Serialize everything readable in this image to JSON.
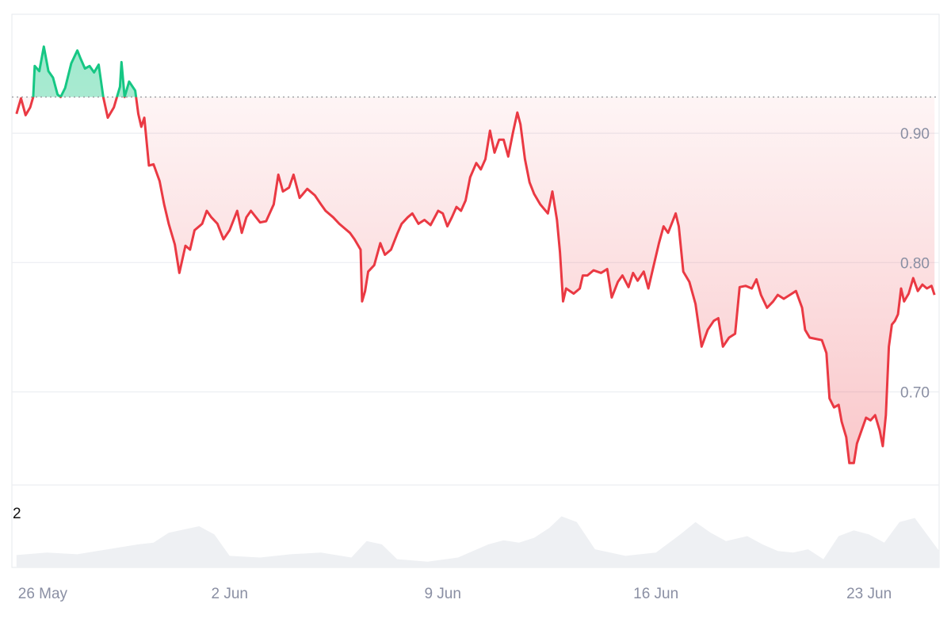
{
  "chart_data": {
    "type": "area",
    "baseline": 0.928,
    "ylim": [
      0.628,
      0.992
    ],
    "yticks": [
      {
        "value": 0.9,
        "label": "0.90"
      },
      {
        "value": 0.8,
        "label": "0.80"
      },
      {
        "value": 0.7,
        "label": "0.70"
      }
    ],
    "xlim_days": [
      -0.15,
      30.3
    ],
    "xticks": [
      {
        "day": 0,
        "label": "26 May"
      },
      {
        "day": 7,
        "label": "2 Jun"
      },
      {
        "day": 14,
        "label": "9 Jun"
      },
      {
        "day": 21,
        "label": "16 Jun"
      },
      {
        "day": 28,
        "label": "23 Jun"
      }
    ],
    "colors": {
      "up": "#16c784",
      "down": "#ea3943",
      "grid": "#eceef2",
      "volume": "#eef0f3",
      "axis_text": "#8a8fa3",
      "baseline": "#9a9aa0"
    },
    "price": [
      [
        0.0,
        0.915
      ],
      [
        0.15,
        0.927
      ],
      [
        0.3,
        0.914
      ],
      [
        0.45,
        0.92
      ],
      [
        0.55,
        0.928
      ],
      [
        0.6,
        0.952
      ],
      [
        0.75,
        0.948
      ],
      [
        0.9,
        0.967
      ],
      [
        1.05,
        0.948
      ],
      [
        1.2,
        0.943
      ],
      [
        1.35,
        0.93
      ],
      [
        1.45,
        0.928
      ],
      [
        1.6,
        0.935
      ],
      [
        1.8,
        0.954
      ],
      [
        2.0,
        0.964
      ],
      [
        2.1,
        0.958
      ],
      [
        2.25,
        0.95
      ],
      [
        2.4,
        0.952
      ],
      [
        2.55,
        0.947
      ],
      [
        2.7,
        0.953
      ],
      [
        2.85,
        0.928
      ],
      [
        3.0,
        0.912
      ],
      [
        3.2,
        0.92
      ],
      [
        3.4,
        0.936
      ],
      [
        3.45,
        0.955
      ],
      [
        3.55,
        0.928
      ],
      [
        3.7,
        0.94
      ],
      [
        3.9,
        0.933
      ],
      [
        4.0,
        0.915
      ],
      [
        4.1,
        0.905
      ],
      [
        4.2,
        0.912
      ],
      [
        4.35,
        0.875
      ],
      [
        4.5,
        0.876
      ],
      [
        4.7,
        0.863
      ],
      [
        4.85,
        0.845
      ],
      [
        5.0,
        0.83
      ],
      [
        5.2,
        0.814
      ],
      [
        5.35,
        0.792
      ],
      [
        5.55,
        0.813
      ],
      [
        5.7,
        0.81
      ],
      [
        5.85,
        0.825
      ],
      [
        6.1,
        0.83
      ],
      [
        6.25,
        0.84
      ],
      [
        6.4,
        0.835
      ],
      [
        6.6,
        0.83
      ],
      [
        6.8,
        0.818
      ],
      [
        7.0,
        0.825
      ],
      [
        7.25,
        0.84
      ],
      [
        7.4,
        0.823
      ],
      [
        7.55,
        0.835
      ],
      [
        7.7,
        0.84
      ],
      [
        8.0,
        0.831
      ],
      [
        8.2,
        0.832
      ],
      [
        8.45,
        0.845
      ],
      [
        8.6,
        0.868
      ],
      [
        8.75,
        0.855
      ],
      [
        8.95,
        0.858
      ],
      [
        9.1,
        0.868
      ],
      [
        9.3,
        0.85
      ],
      [
        9.55,
        0.857
      ],
      [
        9.8,
        0.852
      ],
      [
        10.0,
        0.845
      ],
      [
        10.15,
        0.84
      ],
      [
        10.4,
        0.835
      ],
      [
        10.6,
        0.83
      ],
      [
        10.8,
        0.826
      ],
      [
        10.95,
        0.823
      ],
      [
        11.1,
        0.818
      ],
      [
        11.3,
        0.81
      ],
      [
        11.35,
        0.77
      ],
      [
        11.45,
        0.778
      ],
      [
        11.55,
        0.793
      ],
      [
        11.75,
        0.798
      ],
      [
        11.95,
        0.815
      ],
      [
        12.1,
        0.806
      ],
      [
        12.3,
        0.81
      ],
      [
        12.5,
        0.822
      ],
      [
        12.65,
        0.83
      ],
      [
        12.85,
        0.835
      ],
      [
        13.0,
        0.838
      ],
      [
        13.2,
        0.83
      ],
      [
        13.4,
        0.833
      ],
      [
        13.6,
        0.829
      ],
      [
        13.85,
        0.84
      ],
      [
        14.0,
        0.838
      ],
      [
        14.15,
        0.828
      ],
      [
        14.3,
        0.835
      ],
      [
        14.45,
        0.843
      ],
      [
        14.6,
        0.84
      ],
      [
        14.75,
        0.848
      ],
      [
        14.9,
        0.866
      ],
      [
        15.1,
        0.877
      ],
      [
        15.25,
        0.872
      ],
      [
        15.4,
        0.88
      ],
      [
        15.55,
        0.902
      ],
      [
        15.7,
        0.885
      ],
      [
        15.85,
        0.895
      ],
      [
        16.0,
        0.895
      ],
      [
        16.15,
        0.882
      ],
      [
        16.3,
        0.9
      ],
      [
        16.45,
        0.916
      ],
      [
        16.55,
        0.907
      ],
      [
        16.7,
        0.88
      ],
      [
        16.85,
        0.862
      ],
      [
        17.0,
        0.853
      ],
      [
        17.2,
        0.845
      ],
      [
        17.45,
        0.838
      ],
      [
        17.6,
        0.855
      ],
      [
        17.75,
        0.833
      ],
      [
        17.85,
        0.808
      ],
      [
        17.95,
        0.77
      ],
      [
        18.05,
        0.78
      ],
      [
        18.3,
        0.776
      ],
      [
        18.5,
        0.78
      ],
      [
        18.6,
        0.79
      ],
      [
        18.75,
        0.79
      ],
      [
        18.95,
        0.794
      ],
      [
        19.2,
        0.792
      ],
      [
        19.4,
        0.795
      ],
      [
        19.55,
        0.773
      ],
      [
        19.75,
        0.785
      ],
      [
        19.9,
        0.79
      ],
      [
        20.1,
        0.781
      ],
      [
        20.25,
        0.792
      ],
      [
        20.4,
        0.786
      ],
      [
        20.6,
        0.793
      ],
      [
        20.75,
        0.78
      ],
      [
        20.9,
        0.795
      ],
      [
        21.1,
        0.815
      ],
      [
        21.25,
        0.828
      ],
      [
        21.4,
        0.823
      ],
      [
        21.55,
        0.832
      ],
      [
        21.65,
        0.838
      ],
      [
        21.75,
        0.828
      ],
      [
        21.9,
        0.793
      ],
      [
        22.1,
        0.785
      ],
      [
        22.3,
        0.768
      ],
      [
        22.5,
        0.735
      ],
      [
        22.7,
        0.748
      ],
      [
        22.9,
        0.755
      ],
      [
        23.05,
        0.757
      ],
      [
        23.2,
        0.735
      ],
      [
        23.4,
        0.742
      ],
      [
        23.6,
        0.745
      ],
      [
        23.75,
        0.781
      ],
      [
        23.95,
        0.782
      ],
      [
        24.15,
        0.78
      ],
      [
        24.3,
        0.787
      ],
      [
        24.45,
        0.775
      ],
      [
        24.65,
        0.765
      ],
      [
        24.85,
        0.77
      ],
      [
        25.0,
        0.775
      ],
      [
        25.2,
        0.772
      ],
      [
        25.4,
        0.775
      ],
      [
        25.6,
        0.778
      ],
      [
        25.8,
        0.765
      ],
      [
        25.9,
        0.748
      ],
      [
        26.05,
        0.742
      ],
      [
        26.25,
        0.741
      ],
      [
        26.45,
        0.74
      ],
      [
        26.6,
        0.73
      ],
      [
        26.7,
        0.695
      ],
      [
        26.85,
        0.688
      ],
      [
        27.0,
        0.69
      ],
      [
        27.1,
        0.677
      ],
      [
        27.25,
        0.665
      ],
      [
        27.35,
        0.645
      ],
      [
        27.5,
        0.645
      ],
      [
        27.6,
        0.66
      ],
      [
        27.75,
        0.67
      ],
      [
        27.9,
        0.68
      ],
      [
        28.05,
        0.678
      ],
      [
        28.2,
        0.682
      ],
      [
        28.35,
        0.67
      ],
      [
        28.45,
        0.658
      ],
      [
        28.55,
        0.682
      ],
      [
        28.65,
        0.735
      ],
      [
        28.75,
        0.752
      ],
      [
        28.85,
        0.755
      ],
      [
        28.95,
        0.76
      ],
      [
        29.05,
        0.78
      ],
      [
        29.15,
        0.77
      ],
      [
        29.3,
        0.776
      ],
      [
        29.45,
        0.788
      ],
      [
        29.6,
        0.778
      ],
      [
        29.75,
        0.783
      ],
      [
        29.9,
        0.78
      ],
      [
        30.05,
        0.782
      ],
      [
        30.15,
        0.775
      ]
    ],
    "volume_label": "2",
    "volume": [
      [
        0.0,
        0.15
      ],
      [
        1.0,
        0.18
      ],
      [
        2.0,
        0.16
      ],
      [
        3.0,
        0.22
      ],
      [
        4.0,
        0.28
      ],
      [
        4.5,
        0.3
      ],
      [
        5.0,
        0.42
      ],
      [
        6.0,
        0.5
      ],
      [
        6.5,
        0.4
      ],
      [
        7.0,
        0.14
      ],
      [
        8.0,
        0.12
      ],
      [
        9.0,
        0.16
      ],
      [
        10.0,
        0.18
      ],
      [
        11.0,
        0.12
      ],
      [
        11.5,
        0.32
      ],
      [
        12.0,
        0.28
      ],
      [
        12.5,
        0.1
      ],
      [
        13.5,
        0.07
      ],
      [
        14.5,
        0.12
      ],
      [
        15.5,
        0.28
      ],
      [
        16.0,
        0.33
      ],
      [
        16.5,
        0.3
      ],
      [
        17.0,
        0.36
      ],
      [
        17.5,
        0.48
      ],
      [
        17.9,
        0.62
      ],
      [
        18.4,
        0.55
      ],
      [
        19.0,
        0.22
      ],
      [
        20.0,
        0.14
      ],
      [
        21.0,
        0.18
      ],
      [
        21.8,
        0.4
      ],
      [
        22.3,
        0.55
      ],
      [
        22.8,
        0.42
      ],
      [
        23.3,
        0.32
      ],
      [
        24.0,
        0.38
      ],
      [
        24.5,
        0.28
      ],
      [
        25.0,
        0.2
      ],
      [
        25.5,
        0.18
      ],
      [
        26.0,
        0.22
      ],
      [
        26.5,
        0.1
      ],
      [
        27.0,
        0.38
      ],
      [
        27.5,
        0.45
      ],
      [
        28.0,
        0.4
      ],
      [
        28.5,
        0.3
      ],
      [
        29.0,
        0.55
      ],
      [
        29.5,
        0.6
      ],
      [
        30.3,
        0.2
      ]
    ]
  }
}
